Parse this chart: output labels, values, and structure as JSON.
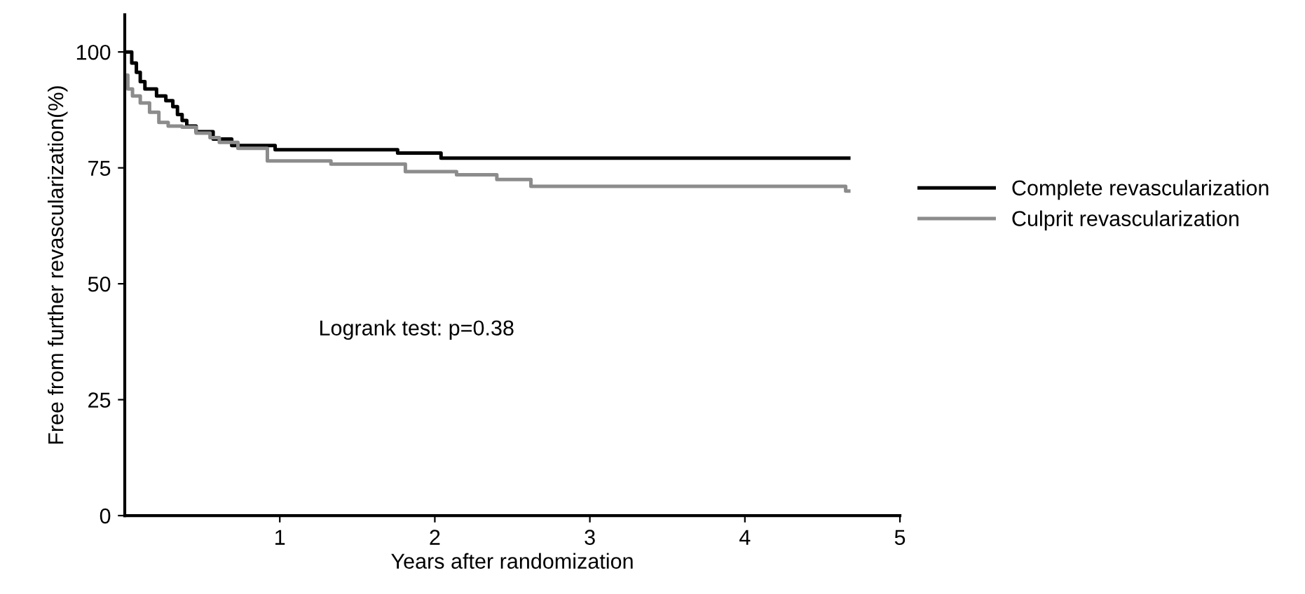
{
  "chart_data": {
    "type": "step",
    "xlabel": "Years after randomization",
    "ylabel": "Free from further revascularization(%)",
    "xlim": [
      0,
      5
    ],
    "ylim": [
      0,
      108
    ],
    "xticks": [
      1,
      2,
      3,
      4,
      5
    ],
    "yticks": [
      0,
      25,
      50,
      75,
      100
    ],
    "grid": false,
    "legend": "right",
    "marker": "none",
    "line_style": "solid",
    "annotations": [
      "Logrank test: p=0.38"
    ],
    "series": [
      {
        "name": "Complete revascularization",
        "color": "#000000",
        "x": [
          0,
          0.045,
          0.075,
          0.1,
          0.13,
          0.205,
          0.265,
          0.31,
          0.34,
          0.37,
          0.4,
          0.46,
          0.57,
          0.69,
          0.97,
          1.76,
          2.04,
          4.67
        ],
        "values": [
          100,
          97.6,
          95.6,
          93.6,
          92.0,
          90.5,
          89.5,
          88.2,
          86.5,
          85.2,
          84.0,
          82.8,
          81.2,
          79.8,
          78.9,
          78.2,
          77.1,
          77.1
        ]
      },
      {
        "name": "Culprit revascularization",
        "color": "#8c8c8c",
        "x": [
          0,
          0.02,
          0.05,
          0.1,
          0.16,
          0.22,
          0.28,
          0.37,
          0.46,
          0.55,
          0.61,
          0.73,
          0.92,
          1.33,
          1.81,
          2.14,
          2.4,
          2.62,
          4.65,
          4.67
        ],
        "values": [
          95,
          92,
          90.5,
          89,
          87,
          84.8,
          84,
          83.8,
          82.5,
          81.5,
          80.5,
          79.2,
          76.5,
          75.8,
          74.2,
          73.5,
          72.5,
          71,
          70,
          70
        ]
      }
    ]
  }
}
